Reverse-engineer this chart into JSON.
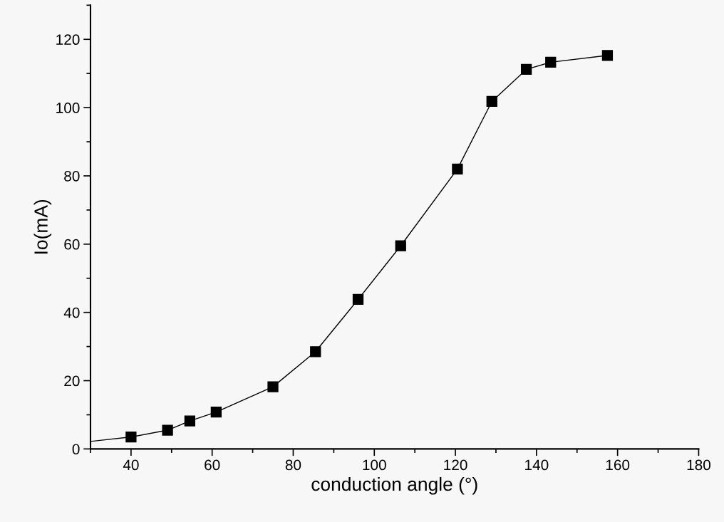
{
  "chart_data": {
    "type": "line",
    "xlabel": "conduction angle (°)",
    "ylabel": "Io(mA)",
    "xlim": [
      30,
      180
    ],
    "ylim": [
      0,
      130
    ],
    "xticks": [
      40,
      60,
      80,
      100,
      120,
      140,
      160,
      180
    ],
    "yticks": [
      0,
      20,
      40,
      60,
      80,
      100,
      120
    ],
    "grid": false,
    "legend": false,
    "series": [
      {
        "color": "#000000",
        "marker": "square",
        "line_style": "solid",
        "x": [
          40,
          49,
          54.5,
          61,
          75,
          85.5,
          96,
          106.5,
          120.5,
          129,
          137.5,
          143.5,
          157.5
        ],
        "values": [
          3.5,
          5.5,
          8.2,
          10.8,
          18.2,
          28.5,
          43.8,
          59.5,
          82,
          101.8,
          111.2,
          113.3,
          115.3
        ]
      },
      {
        "color": "#000000",
        "marker": "none",
        "line_style": "solid",
        "x": [
          30,
          40
        ],
        "values": [
          2.2,
          3.5
        ]
      }
    ]
  }
}
